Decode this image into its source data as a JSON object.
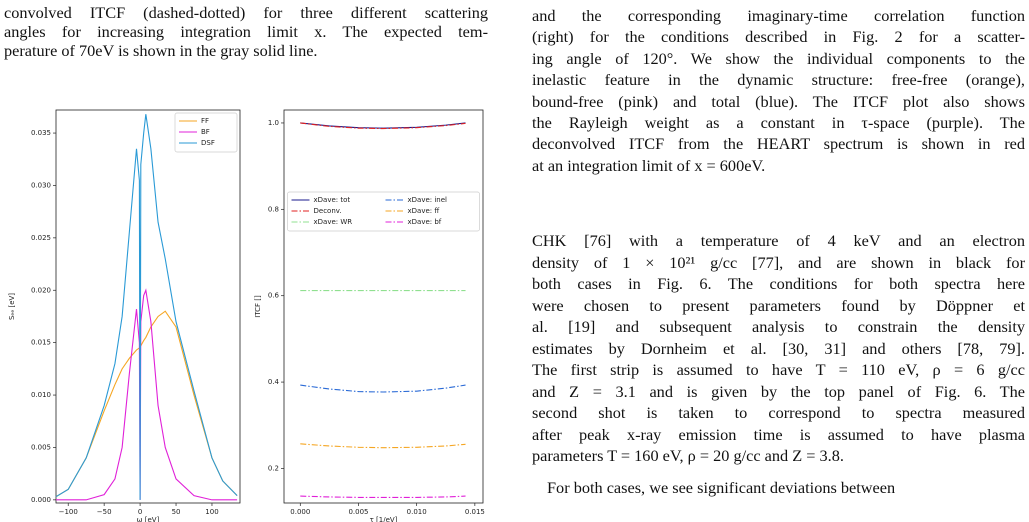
{
  "left_text": {
    "lines": [
      "convolved ITCF (dashed-dotted) for three different scattering",
      "angles for increasing integration limit x. The expected tem-",
      "perature of 70eV is shown in the gray solid line."
    ]
  },
  "right_caption": {
    "lines": [
      "and the corresponding imaginary-time correlation function",
      "(right) for the conditions described in Fig. 2 for a scatter-",
      "ing angle of 120°. We show the individual components to the",
      "inelastic feature in the dynamic structure: free-free (orange),",
      "bound-free (pink) and total (blue). The ITCF plot also shows",
      "the Rayleigh weight as a constant in τ-space (purple). The",
      "deconvolved ITCF from the HEART spectrum is shown in red",
      "at an integration limit of x = 600eV."
    ]
  },
  "right_body": {
    "paragraph_1": [
      "CHK [76] with a temperature of 4 keV and an electron",
      "density of 1 × 10²¹ g/cc [77], and are shown in black for",
      "both cases in Fig. 6. The conditions for both spectra here",
      "were chosen to present parameters found by Döppner et",
      "al. [19] and subsequent analysis to constrain the density",
      "estimates by Dornheim et al. [30, 31] and others [78, 79].",
      "The first strip is assumed to have T = 110 eV, ρ = 6 g/cc",
      "and Z = 3.1 and is given by the top panel of Fig. 6. The",
      "second shot is taken to correspond to spectra measured",
      "after peak x-ray emission time is assumed to have plasma",
      "parameters T = 160 eV, ρ = 20 g/cc and Z = 3.8."
    ],
    "paragraph_2": [
      "For both cases, we see significant deviations between"
    ]
  },
  "chart_data": [
    {
      "type": "line",
      "xlabel": "ω [eV]",
      "ylabel": "Sₑₑ [eV]",
      "x": [
        -117,
        -100,
        -75,
        -50,
        -35,
        -25,
        -15,
        -5,
        -1,
        0,
        1,
        5,
        8,
        15,
        25,
        35,
        50,
        75,
        100,
        115,
        135
      ],
      "xlim": [
        -117,
        139
      ],
      "ylim": [
        -0.0003,
        0.0372
      ],
      "xticks": [
        {
          "value": -100,
          "label": "−100"
        },
        {
          "value": -50,
          "label": "−50"
        },
        0,
        50,
        100
      ],
      "yticks": [
        {
          "value": 0,
          "label": "0.000"
        },
        {
          "value": 0.005,
          "label": "0.005"
        },
        {
          "value": 0.01,
          "label": "0.010"
        },
        {
          "value": 0.015,
          "label": "0.015"
        },
        {
          "value": 0.02,
          "label": "0.020"
        },
        {
          "value": 0.025,
          "label": "0.025"
        },
        {
          "value": 0.03,
          "label": "0.030"
        },
        {
          "value": 0.035,
          "label": "0.035"
        }
      ],
      "legend": "upper right",
      "legend_columns": 1,
      "series": [
        {
          "name": "FF",
          "color": "#f5a623",
          "style": "solid",
          "values": [
            0.0003,
            0.001,
            0.004,
            0.0085,
            0.011,
            0.0125,
            0.0135,
            0.0143,
            0.0145,
            0.0146,
            0.0147,
            0.0152,
            0.0155,
            0.0165,
            0.0175,
            0.018,
            0.0165,
            0.01,
            0.004,
            0.0018,
            0.0004
          ]
        },
        {
          "name": "BF",
          "color": "#e020d8",
          "style": "solid",
          "values": [
            0,
            0,
            0,
            0.0005,
            0.002,
            0.005,
            0.012,
            0.0182,
            0.015,
            0,
            0.017,
            0.0195,
            0.02,
            0.017,
            0.009,
            0.005,
            0.002,
            0.0004,
            0,
            0,
            0
          ]
        },
        {
          "name": "DSF",
          "color": "#2a9ad6",
          "style": "solid",
          "values": [
            0.0003,
            0.001,
            0.004,
            0.009,
            0.013,
            0.0175,
            0.0255,
            0.0335,
            0.0305,
            0,
            0.032,
            0.035,
            0.0368,
            0.0335,
            0.0265,
            0.023,
            0.017,
            0.0104,
            0.004,
            0.0018,
            0.0004
          ]
        }
      ]
    },
    {
      "type": "line",
      "xlabel": "τ [1/eV]",
      "ylabel": "ITCF []",
      "x": [
        0,
        0.0025,
        0.005,
        0.0071,
        0.01,
        0.0125,
        0.0142
      ],
      "xlim": [
        -0.0014,
        0.0157
      ],
      "ylim": [
        0.12,
        1.03
      ],
      "xticks": [
        {
          "value": 0,
          "label": "0.000"
        },
        {
          "value": 0.005,
          "label": "0.005"
        },
        {
          "value": 0.01,
          "label": "0.010"
        },
        {
          "value": 0.015,
          "label": "0.015"
        }
      ],
      "yticks": [
        0.2,
        0.4,
        0.6,
        0.8,
        {
          "value": 1,
          "label": "1.0"
        }
      ],
      "legend": "center",
      "legend_columns": 2,
      "series": [
        {
          "name": "xDave: tot",
          "color": "#1a1a8c",
          "style": "solid",
          "values": [
            1.0,
            0.993,
            0.989,
            0.988,
            0.99,
            0.995,
            1.0
          ]
        },
        {
          "name": "Deconv.",
          "color": "#e02020",
          "style": "dashdot",
          "values": [
            1.0,
            0.992,
            0.988,
            0.987,
            0.989,
            0.994,
            0.999
          ]
        },
        {
          "name": "xDave: WR",
          "color": "#90e090",
          "style": "dashdot",
          "values": [
            0.612,
            0.612,
            0.612,
            0.612,
            0.612,
            0.612,
            0.612
          ]
        },
        {
          "name": "xDave: inel",
          "color": "#2a6ad6",
          "style": "dashdot",
          "values": [
            0.393,
            0.384,
            0.378,
            0.377,
            0.379,
            0.386,
            0.393
          ]
        },
        {
          "name": "xDave: ff",
          "color": "#f5a623",
          "style": "dashdot",
          "values": [
            0.257,
            0.252,
            0.249,
            0.248,
            0.249,
            0.252,
            0.256
          ]
        },
        {
          "name": "xDave: bf",
          "color": "#e020d8",
          "style": "dashdot",
          "values": [
            0.136,
            0.134,
            0.133,
            0.133,
            0.133,
            0.134,
            0.136
          ]
        }
      ]
    }
  ]
}
